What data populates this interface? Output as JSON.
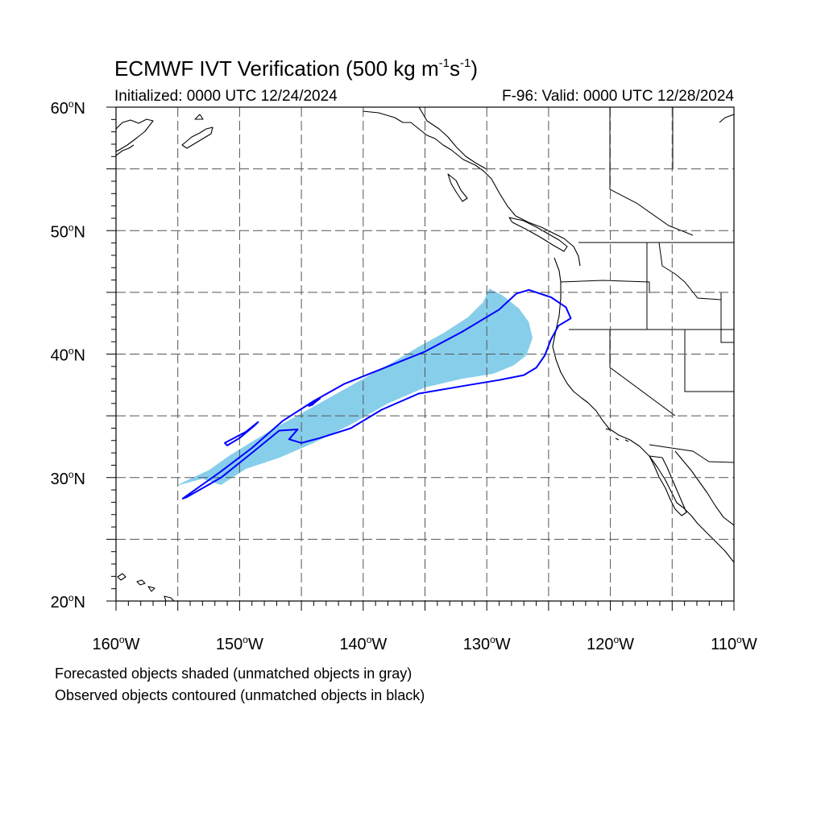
{
  "title": {
    "prefix": "ECMWF IVT Verification (500 kg m",
    "exp1": "-1",
    "mid": "s",
    "exp2": "-1",
    "suffix": ")"
  },
  "subtitle": {
    "initialized": "Initialized: 0000 UTC 12/24/2024",
    "valid": "F-96: Valid: 0000 UTC 12/28/2024"
  },
  "axes": {
    "lon_range": [
      -160,
      -110
    ],
    "lat_range": [
      20,
      60
    ],
    "lon_ticks": [
      {
        "value": -160,
        "num": "160",
        "hemi": "W"
      },
      {
        "value": -150,
        "num": "150",
        "hemi": "W"
      },
      {
        "value": -140,
        "num": "140",
        "hemi": "W"
      },
      {
        "value": -130,
        "num": "130",
        "hemi": "W"
      },
      {
        "value": -120,
        "num": "120",
        "hemi": "W"
      },
      {
        "value": -110,
        "num": "110",
        "hemi": "W"
      }
    ],
    "lat_ticks": [
      {
        "value": 60,
        "num": "60",
        "hemi": "N"
      },
      {
        "value": 50,
        "num": "50",
        "hemi": "N"
      },
      {
        "value": 40,
        "num": "40",
        "hemi": "N"
      },
      {
        "value": 30,
        "num": "30",
        "hemi": "N"
      },
      {
        "value": 20,
        "num": "20",
        "hemi": "N"
      }
    ],
    "gridline_spacing_deg": 5,
    "grid": "dashed"
  },
  "legend_notes": [
    "Forecasted objects shaded (unmatched objects in gray)",
    "Observed objects contoured (unmatched objects in black)"
  ],
  "colors": {
    "forecast_fill": "#87CEEB",
    "observed_contour": "#0000FF",
    "coastline": "#000000",
    "grid": "#555555"
  },
  "chart_data": {
    "type": "map",
    "forecast_objects": [
      {
        "status": "matched",
        "polygon_lonlat": [
          [
            -155.2,
            29.3
          ],
          [
            -154.0,
            29.9
          ],
          [
            -152.5,
            30.6
          ],
          [
            -150.8,
            31.8
          ],
          [
            -149.0,
            32.9
          ],
          [
            -147.0,
            34.1
          ],
          [
            -145.0,
            35.2
          ],
          [
            -142.5,
            36.6
          ],
          [
            -140.0,
            38.0
          ],
          [
            -137.5,
            39.4
          ],
          [
            -135.5,
            40.6
          ],
          [
            -133.5,
            41.7
          ],
          [
            -131.5,
            43.0
          ],
          [
            -130.3,
            44.2
          ],
          [
            -129.8,
            45.3
          ],
          [
            -128.8,
            44.8
          ],
          [
            -127.4,
            43.7
          ],
          [
            -126.6,
            42.6
          ],
          [
            -126.3,
            41.3
          ],
          [
            -126.8,
            39.9
          ],
          [
            -127.8,
            39.1
          ],
          [
            -129.5,
            38.4
          ],
          [
            -132.0,
            38.0
          ],
          [
            -135.0,
            37.3
          ],
          [
            -138.0,
            36.0
          ],
          [
            -141.0,
            34.3
          ],
          [
            -144.0,
            32.8
          ],
          [
            -146.8,
            31.6
          ],
          [
            -149.5,
            30.7
          ],
          [
            -151.5,
            29.4
          ],
          [
            -153.0,
            29.9
          ],
          [
            -154.5,
            29.5
          ]
        ]
      }
    ],
    "observed_objects": [
      {
        "status": "matched",
        "polygon_lonlat": [
          [
            -154.6,
            28.3
          ],
          [
            -151.5,
            30.5
          ],
          [
            -149.0,
            32.4
          ],
          [
            -146.5,
            34.6
          ],
          [
            -144.0,
            36.2
          ],
          [
            -141.5,
            37.6
          ],
          [
            -138.0,
            39.0
          ],
          [
            -135.0,
            40.2
          ],
          [
            -132.0,
            41.8
          ],
          [
            -129.0,
            43.6
          ],
          [
            -127.6,
            44.9
          ],
          [
            -126.6,
            45.2
          ],
          [
            -124.8,
            44.6
          ],
          [
            -123.6,
            43.8
          ],
          [
            -123.2,
            42.9
          ],
          [
            -124.2,
            42.3
          ],
          [
            -124.8,
            41.2
          ],
          [
            -125.3,
            39.9
          ],
          [
            -126.0,
            38.9
          ],
          [
            -127.0,
            38.3
          ],
          [
            -129.0,
            37.9
          ],
          [
            -132.0,
            37.4
          ],
          [
            -135.5,
            36.8
          ],
          [
            -138.5,
            35.5
          ],
          [
            -141.0,
            34.0
          ],
          [
            -143.5,
            33.2
          ],
          [
            -145.0,
            32.8
          ],
          [
            -146.0,
            33.1
          ],
          [
            -145.3,
            33.9
          ],
          [
            -146.8,
            33.8
          ],
          [
            -149.0,
            32.0
          ],
          [
            -151.5,
            30.0
          ],
          [
            -154.3,
            28.4
          ]
        ]
      },
      {
        "status": "matched",
        "polygon_lonlat": [
          [
            -151.0,
            32.6
          ],
          [
            -150.0,
            33.2
          ],
          [
            -148.8,
            34.2
          ],
          [
            -148.5,
            34.5
          ],
          [
            -149.5,
            33.7
          ],
          [
            -151.2,
            32.8
          ]
        ]
      },
      {
        "status": "matched",
        "polygon_lonlat": [
          [
            -143.9,
            36.1
          ],
          [
            -143.5,
            36.4
          ],
          [
            -144.4,
            35.8
          ],
          [
            -144.1,
            35.9
          ]
        ]
      }
    ]
  }
}
